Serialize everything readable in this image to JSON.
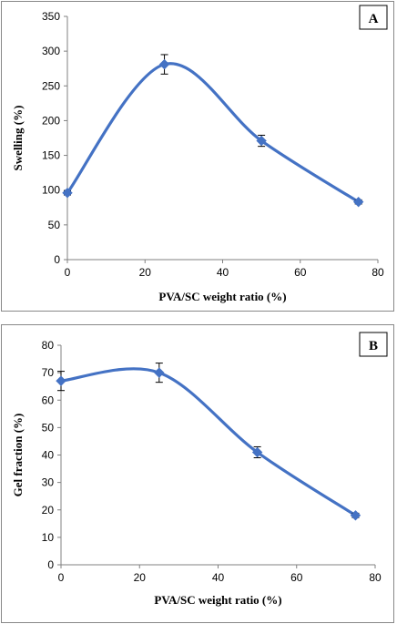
{
  "chart_data": [
    {
      "type": "line",
      "panel_label": "A",
      "title": "",
      "xlabel": "PVA/SC weight ratio (%)",
      "ylabel": "Swelling (%)",
      "xlim": [
        0,
        80
      ],
      "ylim": [
        0,
        350
      ],
      "xticks": [
        0,
        20,
        40,
        60,
        80
      ],
      "yticks": [
        0,
        50,
        100,
        150,
        200,
        250,
        300,
        350
      ],
      "smooth": true,
      "marker": "diamond",
      "grid": false,
      "legend": "none",
      "color": "#4472C4",
      "series": [
        {
          "x": [
            0,
            25,
            50,
            75
          ],
          "values": [
            96,
            281,
            171,
            83
          ],
          "error": [
            3,
            14,
            8,
            3
          ]
        }
      ]
    },
    {
      "type": "line",
      "panel_label": "B",
      "title": "",
      "xlabel": "PVA/SC weight ratio (%)",
      "ylabel": "Gel fraction (%)",
      "xlim": [
        0,
        80
      ],
      "ylim": [
        0,
        80
      ],
      "xticks": [
        0,
        20,
        40,
        60,
        80
      ],
      "yticks": [
        0,
        10,
        20,
        30,
        40,
        50,
        60,
        70,
        80
      ],
      "smooth": true,
      "marker": "diamond",
      "grid": false,
      "legend": "none",
      "color": "#4472C4",
      "series": [
        {
          "x": [
            0,
            25,
            50,
            75
          ],
          "values": [
            67,
            70,
            41,
            18
          ],
          "error": [
            3.5,
            3.5,
            2,
            0.8
          ]
        }
      ]
    }
  ]
}
